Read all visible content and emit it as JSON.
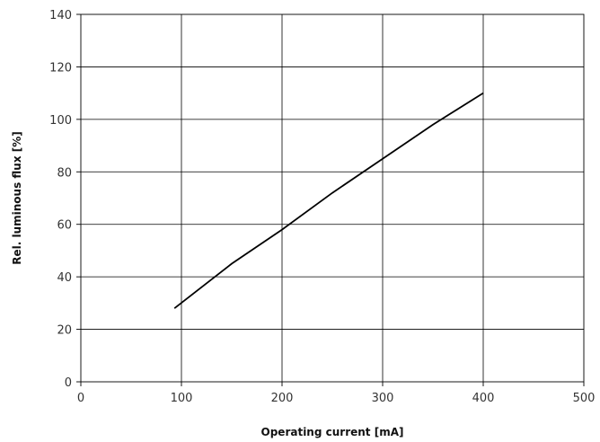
{
  "chart_data": {
    "type": "line",
    "title": "",
    "xlabel": "Operating current [mA]",
    "ylabel": "Rel. luminous flux [%]",
    "xlim": [
      0,
      500
    ],
    "ylim": [
      0,
      140
    ],
    "xticks": [
      0,
      100,
      200,
      300,
      400,
      500
    ],
    "yticks": [
      0,
      20,
      40,
      60,
      80,
      100,
      120,
      140
    ],
    "grid": true,
    "series": [
      {
        "x": [
          93,
          150,
          200,
          250,
          300,
          350,
          400
        ],
        "y": [
          28,
          45,
          58,
          72,
          85,
          98,
          110
        ]
      }
    ],
    "colors": {
      "line": "#000000",
      "grid": "#000000"
    }
  }
}
